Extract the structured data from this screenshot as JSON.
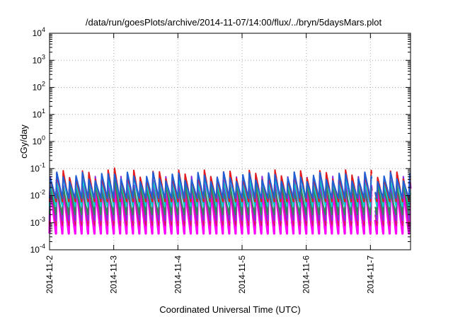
{
  "chart_data": {
    "type": "line",
    "title": "/data/run/goesPlots/archive/2014-11-07/14:00/flux/../bryn/5daysMars.plot",
    "xlabel": "Coordinated Universal Time (UTC)",
    "ylabel": "cGy/day",
    "y_scale": "log",
    "ylim": [
      0.0001,
      10000
    ],
    "y_ticks": [
      {
        "value": 0.0001,
        "base": "10",
        "exp": "-4"
      },
      {
        "value": 0.001,
        "base": "10",
        "exp": "-3"
      },
      {
        "value": 0.01,
        "base": "10",
        "exp": "-2"
      },
      {
        "value": 0.1,
        "base": "10",
        "exp": "-1"
      },
      {
        "value": 1,
        "base": "10",
        "exp": "0"
      },
      {
        "value": 10,
        "base": "10",
        "exp": "1"
      },
      {
        "value": 100,
        "base": "10",
        "exp": "2"
      },
      {
        "value": 1000,
        "base": "10",
        "exp": "3"
      },
      {
        "value": 10000,
        "base": "10",
        "exp": "4"
      }
    ],
    "x_range": [
      "2014-11-02",
      "2014-11-07T15:00"
    ],
    "x_ticks": [
      "2014-11-2",
      "2014-11-3",
      "2014-11-4",
      "2014-11-5",
      "2014-11-6",
      "2014-11-7"
    ],
    "grid": true,
    "oscillation_period_hours": 2.4,
    "series": [
      {
        "color": "#ff00ff",
        "peak": 0.025,
        "trough": 0.0004
      },
      {
        "color": "#d81b60",
        "peak": 0.03,
        "trough": 0.0008
      },
      {
        "color": "#8a2be2",
        "peak": 0.035,
        "trough": 0.0012
      },
      {
        "color": "#2e8b57",
        "peak": 0.02,
        "trough": 0.002
      },
      {
        "color": "#00ced1",
        "peak": 0.04,
        "trough": 0.004
      },
      {
        "color": "#e41a1c",
        "peak": 0.06,
        "trough": 0.006
      },
      {
        "color": "#1f5fd6",
        "peak": 0.05,
        "trough": 0.008
      }
    ]
  }
}
